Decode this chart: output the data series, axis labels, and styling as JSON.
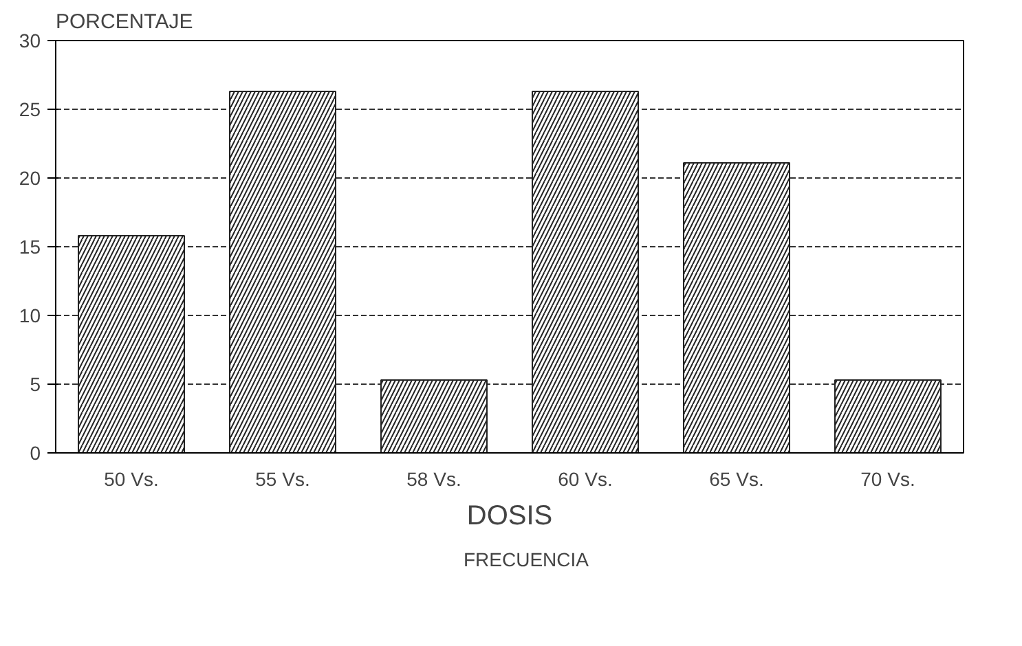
{
  "chart_data": {
    "type": "bar",
    "ylabel": "PORCENTAJE",
    "xlabel": "DOSIS",
    "categories": [
      "50 Vs.",
      "55 Vs.",
      "58 Vs.",
      "60 Vs.",
      "65 Vs.",
      "70 Vs."
    ],
    "series": [
      {
        "name": "FRECUENCIA",
        "color": "#222222",
        "values": [
          15.8,
          26.3,
          5.3,
          26.3,
          21.1,
          5.3
        ]
      }
    ],
    "ylim": [
      0,
      30
    ],
    "yticks": [
      0,
      5,
      10,
      15,
      20,
      25,
      30
    ],
    "grid": "y",
    "legend": "bottom"
  }
}
